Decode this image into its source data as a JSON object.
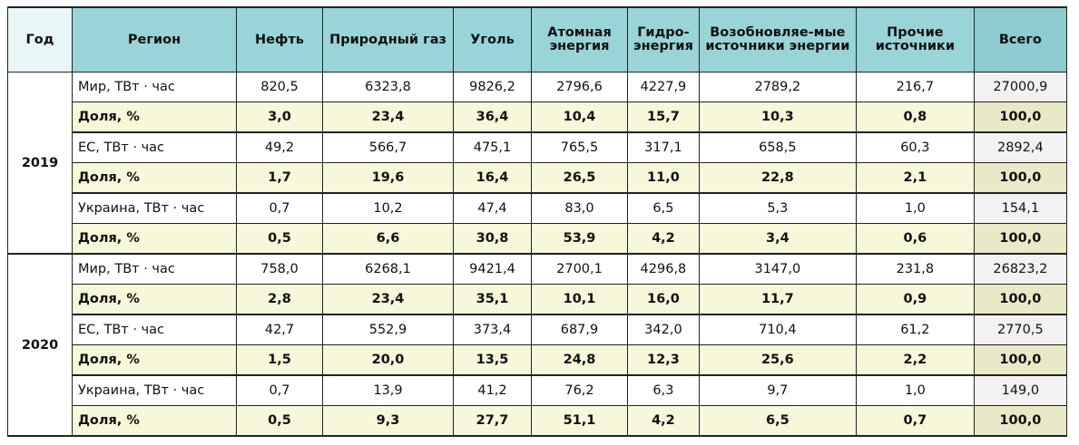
{
  "headers": [
    "Год",
    "Регион",
    "Нефть",
    "Природный газ",
    "Уголь",
    "Атомная энергия",
    "Гидро-энергия",
    "Возобновляе-мые источники энергии",
    "Прочие источники",
    "Всего"
  ],
  "groups": [
    {
      "year": "2019",
      "rows": [
        {
          "region": "Мир, ТВт · час",
          "values": [
            "820,5",
            "6323,8",
            "9826,2",
            "2796,6",
            "4227,9",
            "2789,2",
            "216,7",
            "27000,9"
          ]
        },
        {
          "region": "Доля, %",
          "values": [
            "3,0",
            "23,4",
            "36,4",
            "10,4",
            "15,7",
            "10,3",
            "0,8",
            "100,0"
          ]
        },
        {
          "region": "ЕС, ТВт · час",
          "values": [
            "49,2",
            "566,7",
            "475,1",
            "765,5",
            "317,1",
            "658,5",
            "60,3",
            "2892,4"
          ]
        },
        {
          "region": "Доля, %",
          "values": [
            "1,7",
            "19,6",
            "16,4",
            "26,5",
            "11,0",
            "22,8",
            "2,1",
            "100,0"
          ]
        },
        {
          "region": "Украина, ТВт · час",
          "values": [
            "0,7",
            "10,2",
            "47,4",
            "83,0",
            "6,5",
            "5,3",
            "1,0",
            "154,1"
          ]
        },
        {
          "region": "Доля, %",
          "values": [
            "0,5",
            "6,6",
            "30,8",
            "53,9",
            "4,2",
            "3,4",
            "0,6",
            "100,0"
          ]
        }
      ]
    },
    {
      "year": "2020",
      "rows": [
        {
          "region": "Мир, ТВт · час",
          "values": [
            "758,0",
            "6268,1",
            "9421,4",
            "2700,1",
            "4296,8",
            "3147,0",
            "231,8",
            "26823,2"
          ]
        },
        {
          "region": "Доля, %",
          "values": [
            "2,8",
            "23,4",
            "35,1",
            "10,1",
            "16,0",
            "11,7",
            "0,9",
            "100,0"
          ]
        },
        {
          "region": "ЕС, ТВт · час",
          "values": [
            "42,7",
            "552,9",
            "373,4",
            "687,9",
            "342,0",
            "710,4",
            "61,2",
            "2770,5"
          ]
        },
        {
          "region": "Доля, %",
          "values": [
            "1,5",
            "20,0",
            "13,5",
            "24,8",
            "12,3",
            "25,6",
            "2,2",
            "100,0"
          ]
        },
        {
          "region": "Украина, ТВт · час",
          "values": [
            "0,7",
            "13,9",
            "41,2",
            "76,2",
            "6,3",
            "9,7",
            "1,0",
            "149,0"
          ]
        },
        {
          "region": "Доля, %",
          "values": [
            "0,5",
            "9,3",
            "27,7",
            "51,1",
            "4,2",
            "6,5",
            "0,7",
            "100,0"
          ]
        }
      ]
    }
  ]
}
